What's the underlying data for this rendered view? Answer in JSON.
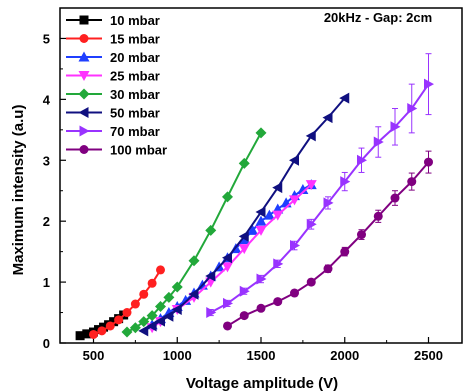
{
  "chart_data": {
    "type": "line",
    "annotation": "20kHz - Gap: 2cm",
    "xlabel": "Voltage amplitude (V)",
    "ylabel": "Maximum intensity (a.u)",
    "xlim": [
      300,
      2700
    ],
    "ylim": [
      0,
      5.5
    ],
    "xticks": [
      500,
      1000,
      1500,
      2000,
      2500
    ],
    "yticks": [
      0,
      1,
      2,
      3,
      4,
      5
    ],
    "grid": false,
    "legend_position": "top-left",
    "series": [
      {
        "name": "10 mbar",
        "color": "#000000",
        "marker": "square",
        "x": [
          420,
          460,
          500,
          530,
          560,
          590,
          620,
          650,
          680
        ],
        "y": [
          0.12,
          0.15,
          0.18,
          0.22,
          0.26,
          0.3,
          0.35,
          0.4,
          0.46
        ]
      },
      {
        "name": "15 mbar",
        "color": "#ff2020",
        "marker": "circle",
        "x": [
          500,
          550,
          600,
          650,
          700,
          750,
          800,
          850,
          900
        ],
        "y": [
          0.14,
          0.2,
          0.28,
          0.38,
          0.5,
          0.64,
          0.8,
          0.98,
          1.2
        ]
      },
      {
        "name": "20 mbar",
        "color": "#1f3fff",
        "marker": "triangle-up",
        "x": [
          850,
          900,
          950,
          1000,
          1050,
          1100,
          1150,
          1200,
          1250,
          1300,
          1350,
          1400,
          1450,
          1500,
          1550,
          1600,
          1650,
          1700,
          1750,
          1800
        ],
        "y": [
          0.3,
          0.4,
          0.5,
          0.6,
          0.7,
          0.82,
          0.95,
          1.1,
          1.25,
          1.4,
          1.55,
          1.7,
          1.85,
          2.0,
          2.1,
          2.2,
          2.3,
          2.42,
          2.52,
          2.6
        ]
      },
      {
        "name": "25 mbar",
        "color": "#ff33ff",
        "marker": "triangle-down",
        "x": [
          850,
          900,
          1000,
          1100,
          1200,
          1300,
          1400,
          1500,
          1600,
          1700,
          1800
        ],
        "y": [
          0.25,
          0.35,
          0.55,
          0.75,
          1.0,
          1.25,
          1.55,
          1.85,
          2.1,
          2.35,
          2.6
        ]
      },
      {
        "name": "30 mbar",
        "color": "#22a83a",
        "marker": "diamond",
        "x": [
          700,
          750,
          800,
          850,
          900,
          950,
          1000,
          1100,
          1200,
          1300,
          1400,
          1500
        ],
        "y": [
          0.18,
          0.25,
          0.35,
          0.45,
          0.6,
          0.75,
          0.92,
          1.35,
          1.85,
          2.4,
          2.95,
          3.45
        ]
      },
      {
        "name": "50 mbar",
        "color": "#101080",
        "marker": "triangle-left",
        "x": [
          800,
          850,
          900,
          950,
          1000,
          1100,
          1200,
          1300,
          1400,
          1500,
          1600,
          1700,
          1800,
          1900,
          2000
        ],
        "y": [
          0.2,
          0.28,
          0.36,
          0.44,
          0.55,
          0.8,
          1.1,
          1.4,
          1.75,
          2.15,
          2.55,
          3.0,
          3.4,
          3.7,
          4.02
        ]
      },
      {
        "name": "70 mbar",
        "color": "#9933ff",
        "marker": "triangle-right",
        "x": [
          1200,
          1300,
          1400,
          1500,
          1600,
          1700,
          1800,
          1900,
          2000,
          2100,
          2200,
          2300,
          2400,
          2500
        ],
        "y": [
          0.5,
          0.65,
          0.85,
          1.05,
          1.3,
          1.6,
          1.95,
          2.3,
          2.65,
          3.0,
          3.3,
          3.55,
          3.85,
          4.25
        ],
        "yerr": [
          0.05,
          0.05,
          0.05,
          0.06,
          0.06,
          0.07,
          0.08,
          0.1,
          0.15,
          0.2,
          0.25,
          0.3,
          0.4,
          0.5
        ]
      },
      {
        "name": "100 mbar",
        "color": "#800080",
        "marker": "circle",
        "x": [
          1300,
          1400,
          1500,
          1600,
          1700,
          1800,
          1900,
          2000,
          2100,
          2200,
          2300,
          2400,
          2500
        ],
        "y": [
          0.28,
          0.45,
          0.57,
          0.68,
          0.82,
          1.0,
          1.22,
          1.5,
          1.78,
          2.08,
          2.38,
          2.65,
          2.97
        ],
        "yerr": [
          0.03,
          0.03,
          0.04,
          0.04,
          0.05,
          0.05,
          0.06,
          0.07,
          0.08,
          0.1,
          0.12,
          0.14,
          0.18
        ]
      }
    ]
  }
}
